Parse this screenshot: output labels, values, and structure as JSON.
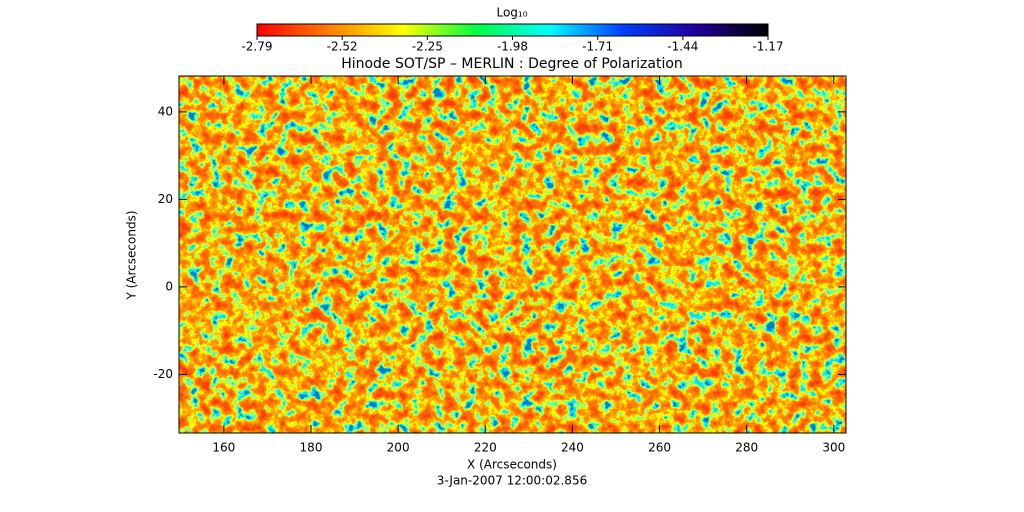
{
  "chart_data": {
    "type": "heatmap",
    "title": "Hinode SOT/SP – MERLIN : Degree of Polarization",
    "subtitle": "3-Jan-2007 12:00:02.856",
    "xlabel": "X (Arcseconds)",
    "ylabel": "Y (Arcseconds)",
    "xlim": [
      149.7,
      302.8
    ],
    "xticks": [
      160,
      180,
      200,
      220,
      240,
      260,
      280,
      300
    ],
    "ylim": [
      -33.4,
      48.2
    ],
    "yticks": [
      -20,
      0,
      20,
      40
    ],
    "colorbar": {
      "label": "Log₁₀",
      "lim": [
        -2.79,
        -1.17
      ],
      "ticks": [
        -2.79,
        -2.52,
        -2.25,
        -1.98,
        -1.71,
        -1.44,
        -1.17
      ],
      "colormap": [
        "#ff0000",
        "#ff8000",
        "#ffff00",
        "#00ff40",
        "#00ffff",
        "#0040ff",
        "#2000a0",
        "#000000"
      ]
    }
  }
}
